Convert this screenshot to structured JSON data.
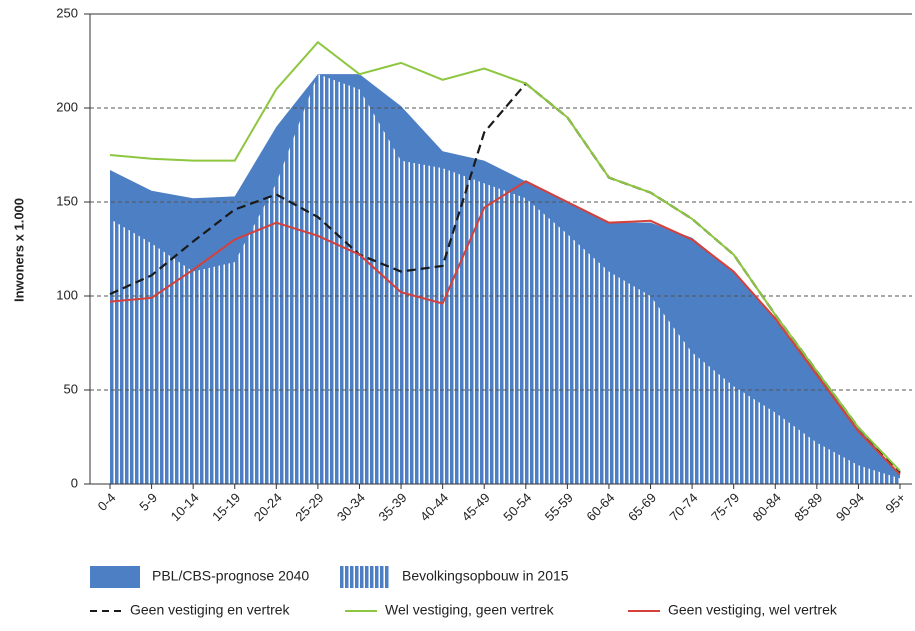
{
  "chart_data": {
    "type": "area-line",
    "y_label": "Inwoners x 1.000",
    "categories": [
      "0-4",
      "5-9",
      "10-14",
      "15-19",
      "20-24",
      "25-29",
      "30-34",
      "35-39",
      "40-44",
      "45-49",
      "50-54",
      "55-59",
      "60-64",
      "65-69",
      "70-74",
      "75-79",
      "80-84",
      "85-89",
      "90-94",
      "95+"
    ],
    "ylim": [
      0,
      250
    ],
    "yticks": [
      0,
      50,
      100,
      150,
      200,
      250
    ],
    "grid": true,
    "series": [
      {
        "name": "PBL/CBS-prognose 2040",
        "style": "area",
        "color": "#4d7fc4",
        "values": [
          167,
          156,
          152,
          153,
          190,
          218,
          218,
          201,
          177,
          172,
          161,
          150,
          139,
          139,
          131,
          113,
          88,
          60,
          30,
          5
        ]
      },
      {
        "name": "Bevolkingsopbouw in 2015",
        "style": "striped-area",
        "color": "#4d7fc4",
        "values": [
          141,
          128,
          113,
          118,
          160,
          218,
          210,
          172,
          168,
          160,
          152,
          133,
          113,
          100,
          70,
          52,
          38,
          22,
          10,
          3
        ]
      },
      {
        "name": "Geen vestiging en vertrek",
        "style": "dashed-line",
        "color": "#1a1a1a",
        "values": [
          101,
          111,
          129,
          146,
          154,
          142,
          122,
          113,
          116,
          187,
          213,
          195,
          163,
          155,
          141,
          122,
          90,
          60,
          30,
          6
        ]
      },
      {
        "name": "Wel vestiging, geen vertrek",
        "style": "line",
        "color": "#8dc63f",
        "values": [
          175,
          173,
          172,
          172,
          210,
          235,
          218,
          224,
          215,
          221,
          213,
          195,
          163,
          155,
          141,
          122,
          90,
          60,
          30,
          7
        ]
      },
      {
        "name": "Geen vestiging, wel vertrek",
        "style": "line",
        "color": "#d5403a",
        "values": [
          97,
          99,
          114,
          130,
          139,
          132,
          122,
          102,
          96,
          147,
          161,
          150,
          139,
          140,
          130,
          113,
          88,
          58,
          28,
          5
        ]
      }
    ]
  }
}
